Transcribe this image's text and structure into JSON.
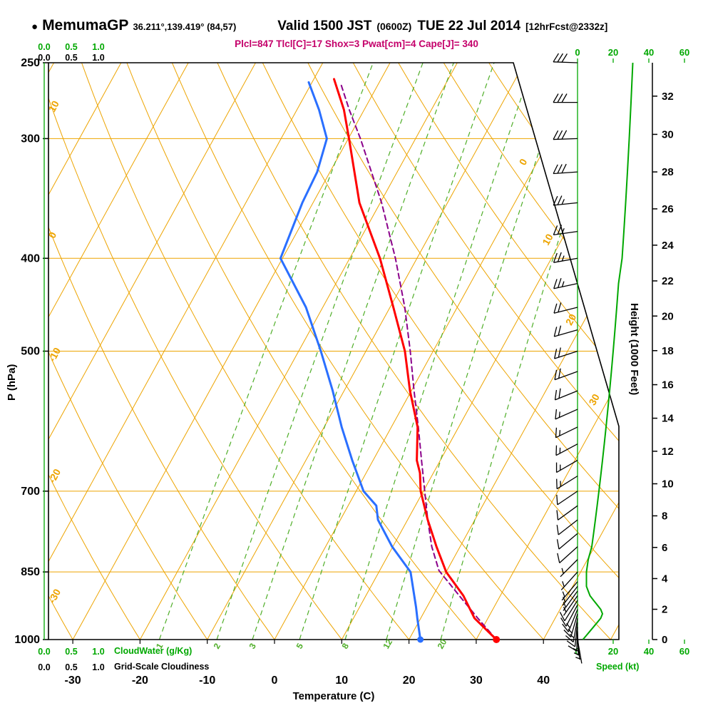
{
  "header": {
    "bullet": "●",
    "station": "MemumaGP",
    "coords": "36.211°,139.419° (84,57)",
    "valid": "Valid 1500 JST",
    "valid_z": "(0600Z)",
    "date": "TUE 22 Jul 2014",
    "fcst_tag": "[12hrFcst@2332z]",
    "indices": "Plcl=847 Tlcl[C]=17 Shox=3 Pwat[cm]=4 Cape[J]= 340"
  },
  "axis_labels": {
    "pressure": "P (hPa)",
    "temperature": "Temperature (C)",
    "height": "Height (1000 Feet)",
    "speed": "Speed (kt)",
    "cloudwater": "CloudWater (g/Kg)",
    "cloudiness": "Grid-Scale Cloudiness"
  },
  "colors": {
    "temperature": "#ff0000",
    "dewpoint": "#2a6fff",
    "parcel": "#8b008b",
    "grid": "#eda400",
    "mixratio": "#4fae28",
    "green_axis": "#00a800",
    "indices": "#c4006a",
    "barbs": "#000000"
  },
  "chart_data": {
    "type": "line",
    "subtype": "skew-t-log-p-sounding",
    "title": "MemumaGP Valid 1500 JST (0600Z) TUE 22 Jul 2014",
    "y_axis": {
      "label": "P (hPa)",
      "scale": "log",
      "range": [
        1000,
        250
      ],
      "ticks": [
        250,
        300,
        400,
        500,
        700,
        850,
        1000
      ]
    },
    "x_axis": {
      "label": "Temperature (C)",
      "range": [
        -40,
        45
      ],
      "skew": "right-45",
      "ticks": [
        -30,
        -20,
        -10,
        0,
        10,
        20,
        30,
        40
      ]
    },
    "height_axis": {
      "label": "Height (1000 Feet)",
      "ticks": [
        0,
        2,
        4,
        6,
        8,
        10,
        12,
        14,
        16,
        18,
        20,
        22,
        24,
        26,
        28,
        30,
        32
      ]
    },
    "speed_axis": {
      "label": "Speed (kt)",
      "ticks": [
        0,
        20,
        40,
        60
      ]
    },
    "cloud_scales": {
      "ticks": [
        "0.0",
        "0.5",
        "1.0"
      ],
      "cloudwater_label": "CloudWater (g/Kg)",
      "cloudiness_label": "Grid-Scale Cloudiness"
    },
    "background": {
      "isotherm_step_c": 10,
      "dry_adiabat_labels": [
        10,
        0,
        -10,
        -20,
        -30
      ],
      "isotherm_edge_labels": [
        0,
        10,
        20,
        30
      ],
      "mixing_ratio_g_kg": [
        1,
        2,
        3,
        5,
        8,
        12,
        20
      ]
    },
    "series": [
      {
        "name": "temperature",
        "color": "#ff0000",
        "style": "solid",
        "points": [
          [
            1000,
            33
          ],
          [
            950,
            28
          ],
          [
            900,
            24.5
          ],
          [
            850,
            20
          ],
          [
            800,
            16.5
          ],
          [
            750,
            13
          ],
          [
            700,
            9.6
          ],
          [
            670,
            8
          ],
          [
            650,
            6.5
          ],
          [
            600,
            3.9
          ],
          [
            550,
            -0.2
          ],
          [
            500,
            -4.2
          ],
          [
            450,
            -9.5
          ],
          [
            400,
            -15.5
          ],
          [
            350,
            -23.1
          ],
          [
            300,
            -29.9
          ],
          [
            280,
            -33
          ],
          [
            260,
            -37
          ]
        ]
      },
      {
        "name": "dewpoint",
        "color": "#2a6fff",
        "style": "solid",
        "points": [
          [
            1000,
            21.7
          ],
          [
            950,
            19.5
          ],
          [
            925,
            18.4
          ],
          [
            900,
            17.2
          ],
          [
            850,
            14.7
          ],
          [
            800,
            9.9
          ],
          [
            750,
            5.6
          ],
          [
            725,
            4.2
          ],
          [
            700,
            1.1
          ],
          [
            650,
            -3.1
          ],
          [
            600,
            -7.4
          ],
          [
            550,
            -11.7
          ],
          [
            500,
            -16.7
          ],
          [
            450,
            -22.5
          ],
          [
            400,
            -30.3
          ],
          [
            350,
            -31.6
          ],
          [
            325,
            -31.9
          ],
          [
            300,
            -33.2
          ],
          [
            280,
            -36.7
          ],
          [
            262,
            -40.5
          ]
        ]
      },
      {
        "name": "parcel",
        "color": "#8b008b",
        "style": "dashed",
        "points": [
          [
            1000,
            33
          ],
          [
            950,
            28.5
          ],
          [
            900,
            23.9
          ],
          [
            847,
            18.8
          ],
          [
            800,
            15.8
          ],
          [
            750,
            13
          ],
          [
            700,
            10.2
          ],
          [
            650,
            7.2
          ],
          [
            600,
            4
          ],
          [
            550,
            0.4
          ],
          [
            500,
            -3.4
          ],
          [
            450,
            -7.8
          ],
          [
            400,
            -13.2
          ],
          [
            350,
            -19.8
          ],
          [
            300,
            -28.2
          ],
          [
            280,
            -32.2
          ],
          [
            262,
            -35.8
          ]
        ]
      }
    ],
    "wind_barbs": {
      "units": "kt",
      "format": [
        "pressure_hPa",
        "direction_deg_from",
        "speed_kt"
      ],
      "levels": [
        [
          1000,
          170,
          3
        ],
        [
          990,
          175,
          5
        ],
        [
          980,
          178,
          7
        ],
        [
          970,
          182,
          9
        ],
        [
          960,
          186,
          11
        ],
        [
          950,
          190,
          13
        ],
        [
          940,
          196,
          14
        ],
        [
          930,
          202,
          13
        ],
        [
          920,
          208,
          11
        ],
        [
          910,
          212,
          9
        ],
        [
          900,
          215,
          7
        ],
        [
          890,
          216,
          6
        ],
        [
          880,
          218,
          5
        ],
        [
          870,
          220,
          5
        ],
        [
          850,
          222,
          5
        ],
        [
          825,
          225,
          6
        ],
        [
          800,
          228,
          8
        ],
        [
          775,
          230,
          9
        ],
        [
          750,
          232,
          10
        ],
        [
          725,
          234,
          11
        ],
        [
          700,
          236,
          12
        ],
        [
          675,
          238,
          13
        ],
        [
          650,
          240,
          14
        ],
        [
          625,
          242,
          15
        ],
        [
          600,
          244,
          16
        ],
        [
          575,
          246,
          17
        ],
        [
          550,
          248,
          18
        ],
        [
          525,
          250,
          19
        ],
        [
          500,
          252,
          20
        ],
        [
          475,
          254,
          21
        ],
        [
          450,
          256,
          22
        ],
        [
          425,
          258,
          23
        ],
        [
          400,
          260,
          25
        ],
        [
          375,
          262,
          26
        ],
        [
          350,
          264,
          27
        ],
        [
          325,
          266,
          28
        ],
        [
          300,
          268,
          29
        ],
        [
          275,
          270,
          30
        ],
        [
          250,
          272,
          31
        ]
      ]
    }
  }
}
